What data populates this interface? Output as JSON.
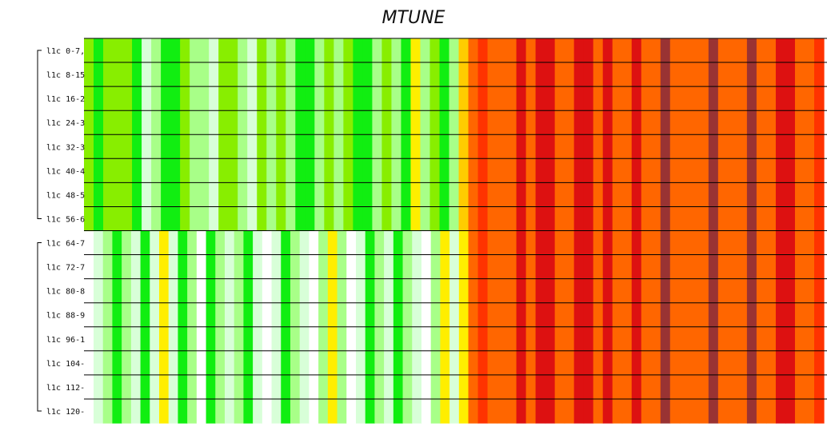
{
  "chart_data": {
    "type": "heatmap",
    "title": "MTUNE",
    "row_labels": [
      "l1c 0-7,",
      "l1c 8-15",
      "l1c 16-2",
      "l1c 24-3",
      "l1c 32-3",
      "l1c 40-4",
      "l1c 48-5",
      "l1c 56-6",
      "l1c 64-7",
      "l1c 72-7",
      "l1c 80-8",
      "l1c 88-9",
      "l1c 96-1",
      "l1c 104-",
      "l1c 112-",
      "l1c 120-"
    ],
    "row_groups": [
      [
        0,
        7
      ],
      [
        8,
        15
      ]
    ],
    "column_count": 77,
    "split_column": 40,
    "palette": {
      "white": "#ffffff",
      "pale_green": "#d8ffd8",
      "light_green": "#a8ff88",
      "yellow_green": "#88ee00",
      "green": "#11ee11",
      "yellow": "#ffee00",
      "gold": "#ffcc00",
      "orange": "#ff6600",
      "red_orange": "#ff3300",
      "red": "#dd1111",
      "dark_red": "#993333"
    },
    "group_a_columns": [
      "yellow_green",
      "green",
      "yellow_green",
      "yellow_green",
      "yellow_green",
      "green",
      "pale_green",
      "light_green",
      "green",
      "green",
      "yellow_green",
      "light_green",
      "light_green",
      "pale_green",
      "yellow_green",
      "yellow_green",
      "light_green",
      "pale_green",
      "yellow_green",
      "light_green",
      "yellow_green",
      "light_green",
      "green",
      "green",
      "light_green",
      "yellow_green",
      "light_green",
      "yellow_green",
      "green",
      "green",
      "light_green",
      "yellow_green",
      "light_green",
      "green",
      "yellow",
      "light_green",
      "yellow_green",
      "green",
      "light_green",
      "gold",
      "orange",
      "red_orange",
      "orange",
      "orange",
      "orange",
      "red",
      "orange",
      "red",
      "red",
      "orange",
      "orange",
      "red",
      "red",
      "orange",
      "red",
      "orange",
      "orange",
      "red",
      "orange",
      "orange",
      "dark_red",
      "orange",
      "orange",
      "orange",
      "orange",
      "dark_red",
      "orange",
      "orange",
      "orange",
      "dark_red",
      "orange",
      "orange",
      "red",
      "red",
      "orange",
      "orange",
      "red_orange"
    ],
    "group_b_columns": [
      "pale_green",
      "light_green",
      "green",
      "light_green",
      "pale_green",
      "green",
      "pale_green",
      "yellow",
      "pale_green",
      "green",
      "light_green",
      "white",
      "green",
      "light_green",
      "pale_green",
      "light_green",
      "green",
      "pale_green",
      "white",
      "pale_green",
      "green",
      "light_green",
      "pale_green",
      "white",
      "light_green",
      "yellow",
      "light_green",
      "white",
      "pale_green",
      "green",
      "light_green",
      "pale_green",
      "green",
      "light_green",
      "pale_green",
      "white",
      "light_green",
      "yellow",
      "pale_green",
      "yellow",
      "orange",
      "red_orange",
      "orange",
      "orange",
      "orange",
      "red",
      "orange",
      "red",
      "red",
      "orange",
      "orange",
      "red",
      "red",
      "orange",
      "red",
      "orange",
      "orange",
      "red",
      "orange",
      "orange",
      "dark_red",
      "orange",
      "orange",
      "orange",
      "orange",
      "dark_red",
      "orange",
      "orange",
      "orange",
      "dark_red",
      "orange",
      "orange",
      "red",
      "red",
      "orange",
      "orange",
      "red_orange"
    ]
  }
}
